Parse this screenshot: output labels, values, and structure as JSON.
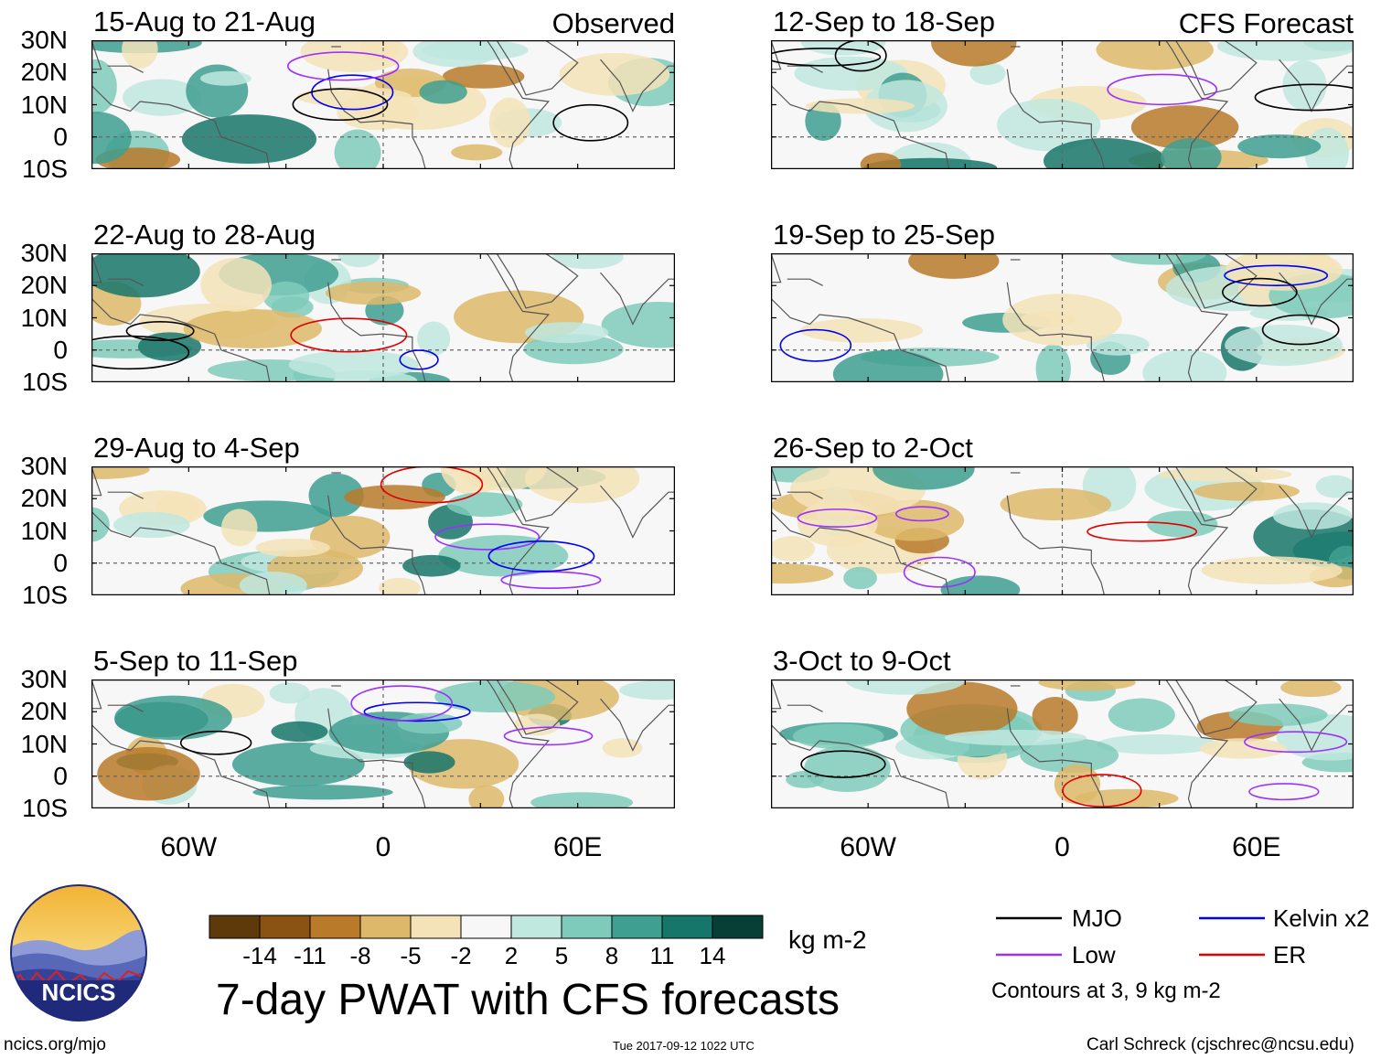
{
  "chart_data": {
    "type": "heatmap",
    "title": "7-day PWAT with CFS forecasts",
    "variable": "precipitable water anomaly",
    "units": "kg m-2",
    "columns": [
      {
        "tag": "Observed",
        "panels": [
          "15-Aug to 21-Aug",
          "22-Aug to 28-Aug",
          "29-Aug to 4-Sep",
          "5-Sep to 11-Sep"
        ]
      },
      {
        "tag": "CFS Forecast",
        "panels": [
          "12-Sep to 18-Sep",
          "19-Sep to 25-Sep",
          "26-Sep to 2-Oct",
          "3-Oct to 9-Oct"
        ]
      }
    ],
    "lat_ticks": [
      "30N",
      "20N",
      "10N",
      "0",
      "10S"
    ],
    "lat_range": [
      -10,
      30
    ],
    "lon_ticks": [
      "60W",
      "0",
      "60E"
    ],
    "lon_range": [
      -90,
      90
    ],
    "colorbar": {
      "labels": [
        "-14",
        "-11",
        "-8",
        "-5",
        "-2",
        "2",
        "5",
        "8",
        "11",
        "14"
      ],
      "colors": [
        "#5e3a0b",
        "#8a5213",
        "#b97a2a",
        "#ddb86a",
        "#f4e3b8",
        "#f7f7f7",
        "#c0e8df",
        "#7fcbbb",
        "#3f9f91",
        "#17766a",
        "#073f36"
      ],
      "units": "kg m-2"
    },
    "legend": {
      "entries": [
        {
          "label": "MJO",
          "color": "#000000"
        },
        {
          "label": "Kelvin x2",
          "color": "#0000ee"
        },
        {
          "label": "Low",
          "color": "#9b30ff"
        },
        {
          "label": "ER",
          "color": "#e00000"
        }
      ],
      "note": "Contours at 3, 9 kg m-2"
    }
  },
  "logo": {
    "text": "NCICS"
  },
  "footer": {
    "url": "ncics.org/mjo",
    "timestamp": "Tue 2017-09-12 1022 UTC",
    "author": "Carl Schreck (cjschrec@ncsu.edu)"
  }
}
